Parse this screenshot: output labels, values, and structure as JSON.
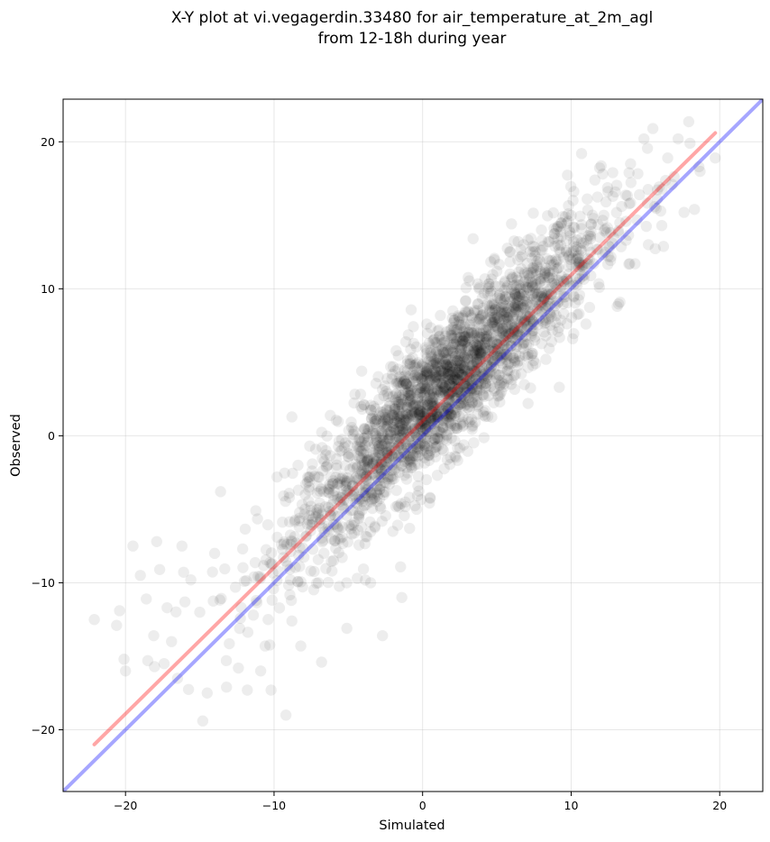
{
  "chart_data": {
    "type": "scatter",
    "title": "X-Y plot at vi.vegagerdin.33480 for air_temperature_at_2m_agl",
    "subtitle": "from 12-18h during year",
    "xlabel": "Simulated",
    "ylabel": "Observed",
    "xlim": [
      -24.2,
      22.9
    ],
    "ylim": [
      -24.2,
      22.9
    ],
    "xticks": [
      -20,
      -10,
      0,
      10,
      20
    ],
    "yticks": [
      -20,
      -10,
      0,
      10,
      20
    ],
    "xtick_labels": [
      "−20",
      "−10",
      "0",
      "10",
      "20"
    ],
    "ytick_labels": [
      "−20",
      "−10",
      "0",
      "10",
      "20"
    ],
    "grid": true,
    "point_color": "#000000",
    "point_alpha": 0.07,
    "regression_line": {
      "color": "#ff0000",
      "alpha": 0.35,
      "x": [
        -22.1,
        19.7
      ],
      "y": [
        -21.0,
        20.6
      ]
    },
    "identity_line": {
      "color": "#0000ff",
      "alpha": 0.35,
      "x": [
        -24.2,
        22.9
      ],
      "y": [
        -24.2,
        22.9
      ]
    },
    "points_summary": {
      "x_range": [
        -22.1,
        19.7
      ],
      "y_range": [
        -19.4,
        20.9
      ],
      "density_peak": [
        1.5,
        3.5
      ]
    },
    "sample_points": [
      [
        -22.1,
        -12.5
      ],
      [
        -20.6,
        -12.9
      ],
      [
        -20.4,
        -11.9
      ],
      [
        -20.1,
        -15.2
      ],
      [
        -20.0,
        -16.0
      ],
      [
        -19.5,
        -7.5
      ],
      [
        -19.0,
        -9.5
      ],
      [
        -18.6,
        -11.1
      ],
      [
        -18.5,
        -15.3
      ],
      [
        -18.1,
        -13.6
      ],
      [
        -17.9,
        -7.2
      ],
      [
        -17.7,
        -9.1
      ],
      [
        -17.4,
        -15.5
      ],
      [
        -17.2,
        -11.7
      ],
      [
        -16.9,
        -14.0
      ],
      [
        -16.5,
        -16.5
      ],
      [
        -16.2,
        -7.5
      ],
      [
        -16.0,
        -11.3
      ],
      [
        -15.6,
        -9.8
      ],
      [
        -15.0,
        -12.0
      ],
      [
        -14.8,
        -19.4
      ],
      [
        -14.5,
        -17.5
      ],
      [
        -14.0,
        -8.0
      ],
      [
        -13.6,
        -3.8
      ],
      [
        -13.2,
        -17.1
      ],
      [
        -12.6,
        -10.3
      ],
      [
        -12.4,
        -15.8
      ],
      [
        -12.0,
        -9.9
      ],
      [
        -11.8,
        -17.3
      ],
      [
        -11.2,
        -11.2
      ],
      [
        -10.9,
        -16.0
      ],
      [
        -10.6,
        -14.3
      ],
      [
        -10.4,
        -12.5
      ],
      [
        -10.2,
        -17.3
      ],
      [
        -9.8,
        -2.8
      ],
      [
        -9.5,
        -7.4
      ],
      [
        -9.2,
        -19.0
      ],
      [
        -8.8,
        -12.6
      ],
      [
        -8.5,
        -7.3
      ],
      [
        -8.2,
        -14.3
      ],
      [
        -7.9,
        -4.0
      ],
      [
        -7.6,
        -0.7
      ],
      [
        -7.2,
        -5.5
      ],
      [
        -6.8,
        -15.4
      ],
      [
        -6.5,
        -1.0
      ],
      [
        -6.1,
        -9.2
      ],
      [
        -5.8,
        -2.2
      ],
      [
        -5.4,
        -6.2
      ],
      [
        -5.1,
        -13.1
      ],
      [
        -4.8,
        -1.3
      ],
      [
        -4.4,
        -9.7
      ],
      [
        -4.1,
        4.4
      ],
      [
        -3.8,
        -3.4
      ],
      [
        -3.5,
        -10.0
      ],
      [
        -3.1,
        1.1
      ],
      [
        -2.7,
        -13.6
      ],
      [
        -2.4,
        -1.5
      ],
      [
        -2.0,
        -6.5
      ],
      [
        -1.7,
        2.3
      ],
      [
        -1.4,
        -11.0
      ],
      [
        -1.1,
        3.5
      ],
      [
        -0.8,
        -2.0
      ],
      [
        -0.4,
        -5.0
      ],
      [
        -0.1,
        0.0
      ],
      [
        0.2,
        6.0
      ],
      [
        0.5,
        -4.2
      ],
      [
        0.8,
        2.1
      ],
      [
        1.1,
        7.2
      ],
      [
        1.4,
        -1.0
      ],
      [
        1.7,
        4.2
      ],
      [
        2.0,
        8.0
      ],
      [
        2.3,
        0.5
      ],
      [
        2.6,
        5.5
      ],
      [
        2.9,
        9.2
      ],
      [
        3.2,
        2.0
      ],
      [
        3.5,
        6.3
      ],
      [
        3.8,
        10.1
      ],
      [
        4.1,
        1.4
      ],
      [
        4.4,
        4.0
      ],
      [
        4.7,
        8.5
      ],
      [
        5.0,
        11.2
      ],
      [
        5.3,
        3.0
      ],
      [
        5.6,
        7.1
      ],
      [
        5.9,
        12.5
      ],
      [
        6.2,
        5.0
      ],
      [
        6.5,
        9.5
      ],
      [
        6.8,
        13.0
      ],
      [
        7.1,
        2.2
      ],
      [
        7.4,
        7.8
      ],
      [
        7.7,
        11.6
      ],
      [
        8.0,
        14.0
      ],
      [
        8.3,
        5.2
      ],
      [
        8.6,
        10.0
      ],
      [
        8.9,
        12.9
      ],
      [
        9.2,
        3.3
      ],
      [
        9.5,
        8.3
      ],
      [
        9.8,
        14.6
      ],
      [
        10.1,
        6.6
      ],
      [
        10.4,
        11.5
      ],
      [
        10.7,
        19.2
      ],
      [
        11.0,
        7.6
      ],
      [
        11.3,
        13.4
      ],
      [
        11.6,
        17.4
      ],
      [
        11.9,
        10.1
      ],
      [
        12.2,
        15.0
      ],
      [
        12.5,
        12.2
      ],
      [
        12.8,
        17.9
      ],
      [
        13.1,
        8.8
      ],
      [
        13.4,
        15.6
      ],
      [
        13.7,
        13.3
      ],
      [
        14.0,
        18.5
      ],
      [
        14.3,
        11.7
      ],
      [
        14.6,
        16.4
      ],
      [
        14.9,
        20.2
      ],
      [
        15.2,
        13.0
      ],
      [
        15.5,
        20.9
      ],
      [
        15.8,
        16.1
      ],
      [
        16.1,
        14.3
      ],
      [
        16.5,
        18.9
      ],
      [
        16.8,
        17.1
      ],
      [
        17.2,
        20.2
      ],
      [
        17.6,
        15.2
      ],
      [
        18.0,
        19.9
      ],
      [
        18.3,
        15.4
      ],
      [
        18.6,
        18.3
      ],
      [
        19.7,
        18.9
      ]
    ]
  }
}
